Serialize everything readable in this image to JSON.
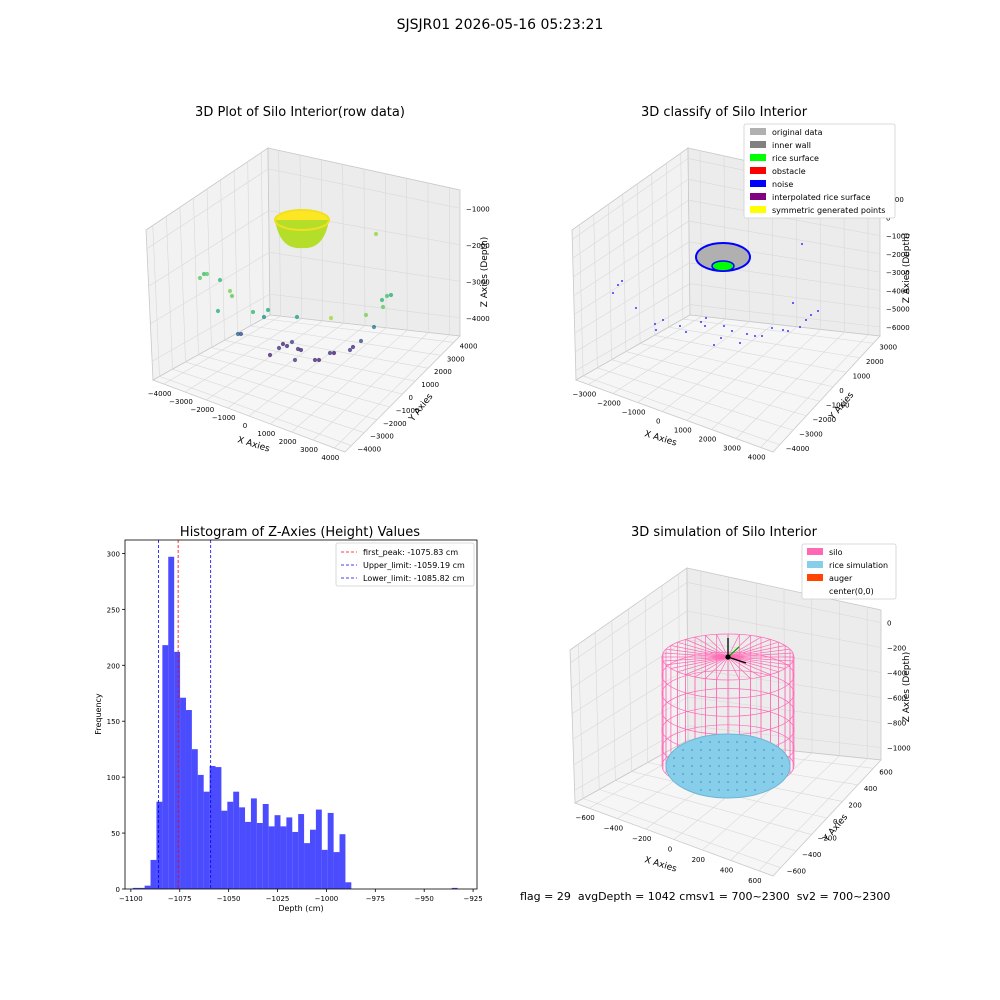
{
  "figure": {
    "title": "SJSJR01 2026-05-16 05:23:21",
    "footer": "flag = 29  avgDepth = 1042 cmsv1 = 700~2300  sv2 = 700~2300"
  },
  "chart_data": [
    {
      "type": "scatter3d",
      "title": "3D Plot of Silo Interior(row data)",
      "xlabel": "X Axies",
      "ylabel": "Y Axies",
      "zlabel": "Z Axies (Depth)",
      "xticks": [
        "−4000",
        "−3000",
        "−2000",
        "−1000",
        "0",
        "1000",
        "2000",
        "3000",
        "4000"
      ],
      "yticks": [
        "−4000",
        "−3000",
        "−2000",
        "−1000",
        "0",
        "1000",
        "2000",
        "3000",
        "4000"
      ],
      "zticks": [
        "−1000",
        "−2000",
        "−3000",
        "−4000"
      ],
      "xlim": [
        -4000,
        4000
      ],
      "ylim": [
        -4000,
        4000
      ],
      "zlim": [
        -4500,
        -500
      ],
      "colormap": "viridis",
      "bowl": {
        "center": [
          -1000,
          1000
        ],
        "depth": -1000,
        "color_top": "#fde725",
        "color_bottom": "#8fd744"
      }
    },
    {
      "type": "scatter3d",
      "title": "3D classify of Silo Interior",
      "xlabel": "X Axies",
      "ylabel": "Y Axies",
      "zlabel": "Z Axies (Depth)",
      "xticks": [
        "−3000",
        "−2000",
        "−1000",
        "0",
        "1000",
        "2000",
        "3000",
        "4000"
      ],
      "yticks": [
        "−4000",
        "−3000",
        "−2000",
        "−1000",
        "0",
        "1000",
        "2000",
        "3000"
      ],
      "zticks": [
        "1000",
        "0",
        "−1000",
        "−2000",
        "−3000",
        "−4000",
        "−5000",
        "−6000"
      ],
      "legend": [
        {
          "label": "original data",
          "color": "#b0b0b0"
        },
        {
          "label": "inner wall",
          "color": "#808080"
        },
        {
          "label": "rice surface",
          "color": "#00ff00"
        },
        {
          "label": "obstacle",
          "color": "#ff0000"
        },
        {
          "label": "noise",
          "color": "#0000ff"
        },
        {
          "label": "interpolated rice surface",
          "color": "#800080"
        },
        {
          "label": "symmetric generated points",
          "color": "#ffff00"
        }
      ],
      "legend_loc": "upper right"
    },
    {
      "type": "histogram",
      "title": "Histogram of Z-Axies (Height) Values",
      "xlabel": "Depth (cm)",
      "ylabel": "Frequency",
      "xlim": [
        -1103,
        -923
      ],
      "ylim": [
        0,
        312
      ],
      "xticks": [
        -1100,
        -1075,
        -1050,
        -1025,
        -1000,
        -975,
        -950,
        -925
      ],
      "xtick_labels": [
        "−1100",
        "−1075",
        "−1050",
        "−1025",
        "−1000",
        "−975",
        "−950",
        "−925"
      ],
      "yticks": [
        0,
        50,
        100,
        150,
        200,
        250,
        300
      ],
      "bin_start": -1099,
      "bin_width": 3.02,
      "counts": [
        1,
        1,
        3,
        26,
        78,
        218,
        297,
        212,
        171,
        160,
        125,
        102,
        87,
        110,
        109,
        70,
        78,
        87,
        73,
        60,
        81,
        59,
        76,
        56,
        66,
        56,
        64,
        51,
        67,
        41,
        53,
        71,
        35,
        68,
        33,
        49,
        6,
        0,
        0,
        0,
        0,
        0,
        0,
        0,
        0,
        0,
        0,
        0,
        0,
        0,
        0,
        0,
        0,
        0,
        1
      ],
      "bar_color": "#0000ff",
      "bar_alpha": 0.7,
      "vlines": [
        {
          "label": "first_peak: -1075.83 cm",
          "x": -1075.83,
          "color": "#ff0000"
        },
        {
          "label": "Upper_limit: -1059.19 cm",
          "x": -1059.19,
          "color": "#0000ff"
        },
        {
          "label": "Lower_limit: -1085.82 cm",
          "x": -1085.82,
          "color": "#0000ff"
        }
      ],
      "legend_loc": "upper right"
    },
    {
      "type": "surface3d",
      "title": "3D simulation of Silo Interior",
      "xlabel": "X Axies",
      "ylabel": "Y Axies",
      "zlabel": "Z Axies (Depth)",
      "xticks": [
        "−600",
        "−400",
        "−200",
        "0",
        "200",
        "400",
        "600"
      ],
      "yticks": [
        "−600",
        "−400",
        "−200",
        "0",
        "200",
        "400",
        "600"
      ],
      "zticks": [
        "0",
        "−200",
        "−400",
        "−600",
        "−800",
        "−1000"
      ],
      "legend": [
        {
          "label": "silo",
          "color": "#ff69b4"
        },
        {
          "label": "rice simulation",
          "color": "#87ceeb"
        },
        {
          "label": "auger",
          "color": "#ff4500"
        },
        {
          "label": "center(0,0)",
          "color": ""
        }
      ],
      "legend_loc": "upper right",
      "rice_depth": -1042
    }
  ]
}
